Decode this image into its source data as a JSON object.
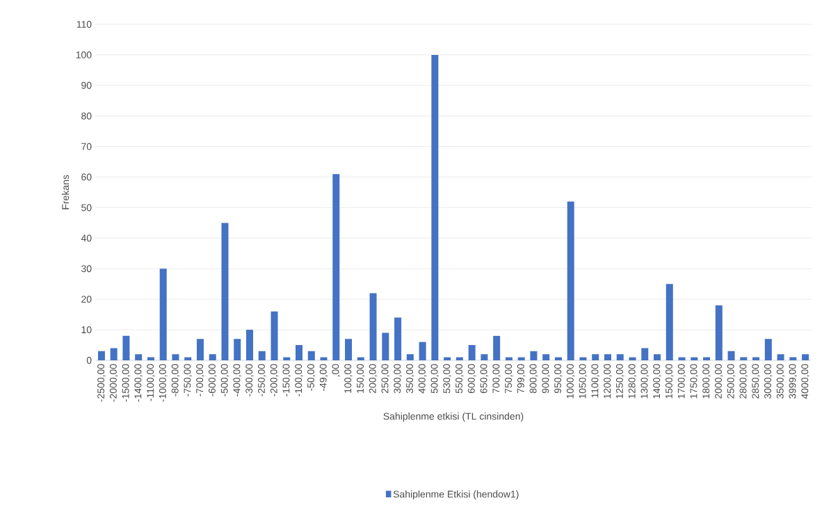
{
  "chart_data": {
    "type": "bar",
    "xlabel": "Sahiplenme etkisi (TL cinsinden)",
    "ylabel": "Frekans",
    "categories": [
      "-2500,00",
      "-2000,00",
      "-1500,00",
      "-1400,00",
      "-1100,00",
      "-1000,00",
      "-800,00",
      "-750,00",
      "-700,00",
      "-600,00",
      "-500,00",
      "-400,00",
      "-300,00",
      "-250,00",
      "-200,00",
      "-150,00",
      "-100,00",
      "-50,00",
      "-49,00",
      ",00",
      "100,00",
      "150,00",
      "200,00",
      "250,00",
      "300,00",
      "350,00",
      "400,00",
      "500,00",
      "530,00",
      "550,00",
      "600,00",
      "650,00",
      "700,00",
      "750,00",
      "799,00",
      "800,00",
      "900,00",
      "950,00",
      "1000,00",
      "1050,00",
      "1100,00",
      "1200,00",
      "1250,00",
      "1280,00",
      "1300,00",
      "1400,00",
      "1500,00",
      "1700,00",
      "1750,00",
      "1800,00",
      "2000,00",
      "2500,00",
      "2800,00",
      "2850,00",
      "3000,00",
      "3500,00",
      "3999,00",
      "4000,00"
    ],
    "series": [
      {
        "name": "Sahiplenme Etkisi (hendow1)",
        "color": "#4472c4",
        "values": [
          3,
          4,
          8,
          2,
          1,
          30,
          2,
          1,
          7,
          2,
          45,
          7,
          10,
          3,
          16,
          1,
          5,
          3,
          1,
          61,
          7,
          1,
          22,
          9,
          14,
          2,
          6,
          100,
          1,
          1,
          5,
          2,
          8,
          1,
          1,
          3,
          2,
          1,
          52,
          1,
          2,
          2,
          2,
          1,
          4,
          2,
          25,
          1,
          1,
          1,
          18,
          3,
          1,
          1,
          7,
          2,
          1,
          2
        ]
      }
    ],
    "ylim": [
      0,
      110
    ],
    "yticks": [
      0,
      10,
      20,
      30,
      40,
      50,
      60,
      70,
      80,
      90,
      100,
      110
    ],
    "grid": "y",
    "legend": "bottom"
  }
}
